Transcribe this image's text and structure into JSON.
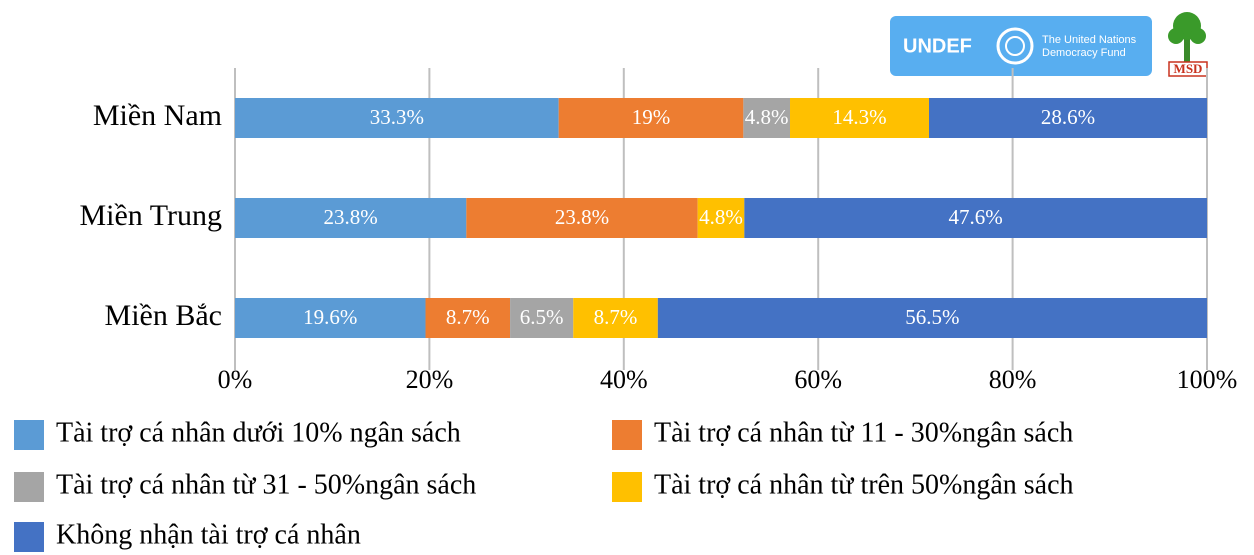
{
  "chart_data": {
    "type": "stacked_barh",
    "categories": [
      "Miền Nam",
      "Miền Trung",
      "Miền Bắc"
    ],
    "series": [
      {
        "name": "Tài trợ cá nhân dưới 10% ngân sách",
        "color": "#5b9bd5",
        "values": [
          33.3,
          23.8,
          19.6
        ],
        "value_labels": [
          "33.3%",
          "23.8%",
          "19.6%"
        ]
      },
      {
        "name": "Tài trợ cá nhân từ 11 - 30%ngân sách",
        "color": "#ed7d31",
        "values": [
          19,
          23.8,
          8.7
        ],
        "value_labels": [
          "19%",
          "23.8%",
          "8.7%"
        ]
      },
      {
        "name": "Tài trợ cá nhân từ 31 - 50%ngân sách",
        "color": "#a5a5a5",
        "values": [
          4.8,
          null,
          6.5
        ],
        "value_labels": [
          "4.8%",
          null,
          "6.5%"
        ]
      },
      {
        "name": "Tài trợ cá nhân từ trên 50%ngân sách",
        "color": "#ffc000",
        "values": [
          14.3,
          4.8,
          8.7
        ],
        "value_labels": [
          "14.3%",
          "4.8%",
          "8.7%"
        ]
      },
      {
        "name": "Không nhận tài trợ cá nhân",
        "color": "#4472c4",
        "values": [
          28.6,
          47.6,
          56.5
        ],
        "value_labels": [
          "28.6%",
          "47.6%",
          "56.5%"
        ]
      }
    ],
    "xlim": [
      0,
      100
    ],
    "xticks": [
      {
        "value": 0,
        "label": "0%"
      },
      {
        "value": 20,
        "label": "20%"
      },
      {
        "value": 40,
        "label": "40%"
      },
      {
        "value": 60,
        "label": "60%"
      },
      {
        "value": 80,
        "label": "80%"
      },
      {
        "value": 100,
        "label": "100%"
      }
    ],
    "grid": true
  },
  "logos": {
    "undef": "UNDEF",
    "undef_caption": [
      "The United Nations",
      "Democracy Fund"
    ],
    "msd": "MSD"
  }
}
